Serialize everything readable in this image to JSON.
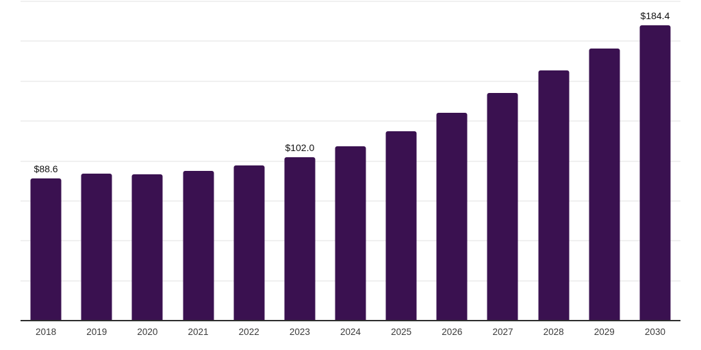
{
  "chart_data": {
    "type": "bar",
    "title": "",
    "xlabel": "",
    "ylabel": "",
    "categories": [
      "2018",
      "2019",
      "2020",
      "2021",
      "2022",
      "2023",
      "2024",
      "2025",
      "2026",
      "2027",
      "2028",
      "2029",
      "2030"
    ],
    "values": [
      88.6,
      91.5,
      91.2,
      93.4,
      96.8,
      102.0,
      108.8,
      118.3,
      129.9,
      142.4,
      156.2,
      170.2,
      184.4
    ],
    "data_labels": [
      "$88.6",
      "",
      "",
      "",
      "",
      "$102.0",
      "",
      "",
      "",
      "",
      "",
      "",
      "$184.4"
    ],
    "ylim": [
      0,
      200
    ],
    "gridline_step": 25,
    "grid": "horizontal",
    "legend": "none",
    "y_tick_labels_visible": false,
    "colors": {
      "bar": "#3a1150",
      "gridline": "#f0f0f0",
      "axis_line": "#2e2e2e",
      "value_label": "#111111",
      "tick_label": "#3a3a3a",
      "background": "#ffffff"
    }
  }
}
